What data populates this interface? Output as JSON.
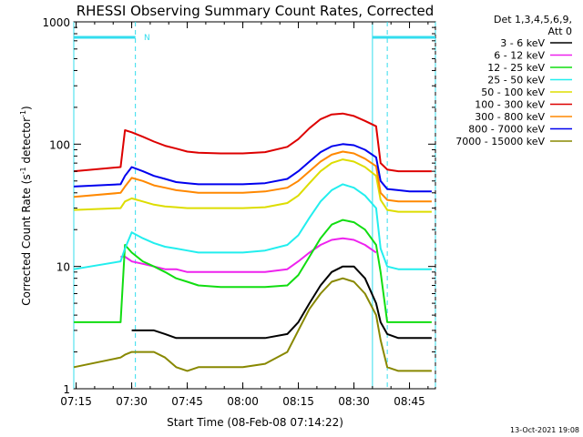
{
  "chart_data": {
    "type": "line",
    "title": "RHESSI Observing Summary Count Rates, Corrected",
    "xlabel": "Start Time (08-Feb-08 07:14:22)",
    "ylabel_main": "Corrected Count Rate (s",
    "ylabel_sup1": "-1",
    "ylabel_mid": " detector",
    "ylabel_sup2": "-1",
    "ylabel_end": ")",
    "y_scale": "log",
    "ylim": [
      1,
      1000
    ],
    "xlim": [
      "07:14:22",
      "08:52:00"
    ],
    "x_ticks": [
      "07:15",
      "07:30",
      "07:45",
      "08:00",
      "08:15",
      "08:30",
      "08:45"
    ],
    "y_ticks": [
      "1",
      "10",
      "100",
      "1000"
    ],
    "detectors": "Det 1,3,4,5,6,9,",
    "attenuator": "Att 0",
    "footer_date": "13-Oct-2021 19:08",
    "flag_label": "N",
    "markers": {
      "solid_lines": [
        "07:14:22",
        "08:35:00"
      ],
      "dashed_lines": [
        "07:31:00",
        "08:39:00",
        "08:52:00"
      ],
      "bars": [
        [
          "07:14:22",
          "07:31:00"
        ],
        [
          "08:35:00",
          "08:52:00"
        ]
      ],
      "colors": {
        "solid": "#33ddee",
        "dashed": "#33ddee"
      }
    },
    "x_hours": [
      7.24,
      7.45,
      7.47,
      7.5,
      7.55,
      7.6,
      7.65,
      7.7,
      7.75,
      7.8,
      7.9,
      8.0,
      8.1,
      8.2,
      8.25,
      8.3,
      8.35,
      8.4,
      8.45,
      8.5,
      8.55,
      8.6,
      8.62,
      8.65,
      8.7,
      8.75,
      8.8,
      8.85
    ],
    "series": [
      {
        "name": "3 - 6 keV",
        "color": "#000000",
        "values": [
          null,
          null,
          null,
          3.0,
          3.0,
          3.0,
          2.8,
          2.6,
          2.6,
          2.6,
          2.6,
          2.6,
          2.6,
          2.8,
          3.5,
          5.0,
          7.0,
          9.0,
          10.0,
          10.0,
          8.0,
          5.0,
          3.5,
          2.8,
          2.6,
          2.6,
          2.6,
          2.6
        ]
      },
      {
        "name": "6 - 12 keV",
        "color": "#ee22ee",
        "values": [
          null,
          12.0,
          12.0,
          11.0,
          10.5,
          10.0,
          9.5,
          9.5,
          9.0,
          9.0,
          9.0,
          9.0,
          9.0,
          9.5,
          11.0,
          13.0,
          15.0,
          16.5,
          17.0,
          16.5,
          15.0,
          13.0,
          null,
          null,
          null,
          null,
          null,
          null
        ]
      },
      {
        "name": "12 - 25 keV",
        "color": "#11dd11",
        "values": [
          3.5,
          3.5,
          15.0,
          13.0,
          11.0,
          10.0,
          9.0,
          8.0,
          7.5,
          7.0,
          6.8,
          6.8,
          6.8,
          7.0,
          8.5,
          12.0,
          17.0,
          22.0,
          24.0,
          23.0,
          20.0,
          15.0,
          9.0,
          3.5,
          3.5,
          3.5,
          3.5,
          3.5
        ]
      },
      {
        "name": "25 - 50 keV",
        "color": "#22eeee",
        "values": [
          9.5,
          11.0,
          14.0,
          19.0,
          17.0,
          15.5,
          14.5,
          14.0,
          13.5,
          13.0,
          13.0,
          13.0,
          13.5,
          15.0,
          18.0,
          25.0,
          34.0,
          42.0,
          47.0,
          44.0,
          38.0,
          30.0,
          14.0,
          10.0,
          9.5,
          9.5,
          9.5,
          9.5
        ]
      },
      {
        "name": "50 - 100 keV",
        "color": "#dddd00",
        "values": [
          29.0,
          30.0,
          34.0,
          36.0,
          34.0,
          32.0,
          31.0,
          30.5,
          30.0,
          30.0,
          30.0,
          30.0,
          30.5,
          33.0,
          38.0,
          48.0,
          60.0,
          70.0,
          75.0,
          72.0,
          65.0,
          55.0,
          35.0,
          29.0,
          28.0,
          28.0,
          28.0,
          28.0
        ]
      },
      {
        "name": "100 - 300 keV",
        "color": "#dd0000",
        "values": [
          60.0,
          65.0,
          130.0,
          125.0,
          115.0,
          105.0,
          97.0,
          92.0,
          87.0,
          85.0,
          84.0,
          84.0,
          86.0,
          95.0,
          110.0,
          135.0,
          160.0,
          175.0,
          178.0,
          170.0,
          155.0,
          140.0,
          70.0,
          62.0,
          60.0,
          60.0,
          60.0,
          60.0
        ]
      },
      {
        "name": "300 - 800 keV",
        "color": "#ff8800",
        "values": [
          37.0,
          40.0,
          45.0,
          53.0,
          50.0,
          46.0,
          44.0,
          42.0,
          41.0,
          40.0,
          40.0,
          40.0,
          41.0,
          44.0,
          50.0,
          60.0,
          72.0,
          82.0,
          87.0,
          84.0,
          76.0,
          66.0,
          40.0,
          35.0,
          34.0,
          34.0,
          34.0,
          34.0
        ]
      },
      {
        "name": "800 - 7000 keV",
        "color": "#0000ee",
        "values": [
          45.0,
          47.0,
          55.0,
          65.0,
          60.0,
          55.0,
          52.0,
          49.0,
          48.0,
          47.0,
          47.0,
          47.0,
          48.0,
          52.0,
          60.0,
          72.0,
          86.0,
          96.0,
          100.0,
          98.0,
          90.0,
          78.0,
          50.0,
          43.0,
          42.0,
          41.0,
          41.0,
          41.0
        ]
      },
      {
        "name": "7000 - 15000 keV",
        "color": "#888800",
        "values": [
          1.5,
          1.8,
          1.9,
          2.0,
          2.0,
          2.0,
          1.8,
          1.5,
          1.4,
          1.5,
          1.5,
          1.5,
          1.6,
          2.0,
          3.0,
          4.5,
          6.0,
          7.5,
          8.0,
          7.5,
          6.0,
          4.0,
          2.5,
          1.5,
          1.4,
          1.4,
          1.4,
          1.4
        ]
      }
    ]
  }
}
